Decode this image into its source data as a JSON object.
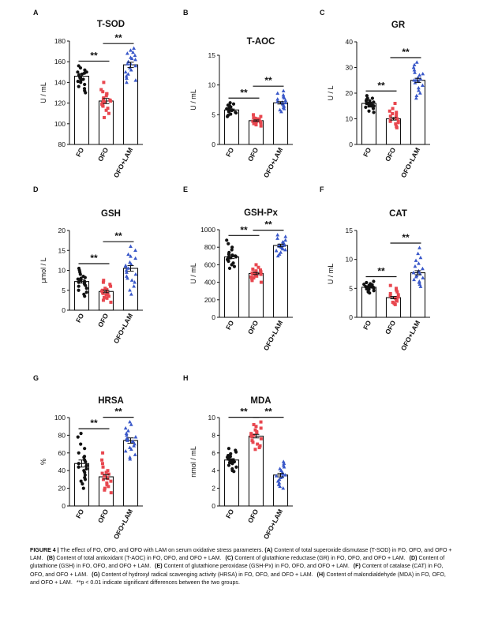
{
  "figure": {
    "caption_label": "FIGURE 4 |",
    "caption_text": "The effect of FO, OFO, and OFO with LAM on serum oxidative stress parameters.",
    "caption_items": [
      {
        "letter": "(A)",
        "text": "Content of total superoxide dismutase (T-SOD) in FO, OFO, and OFO + LAM."
      },
      {
        "letter": "(B)",
        "text": "Content of total antioxidant (T-AOC) in FO, OFO, and OFO + LAM."
      },
      {
        "letter": "(C)",
        "text": "Content of glutathione reductase (GR) in FO, OFO, and OFO + LAM."
      },
      {
        "letter": "(D)",
        "text": "Content of glutathione (GSH) in FO, OFO, and OFO + LAM."
      },
      {
        "letter": "(E)",
        "text": "Content of glutathione peroxidase (GSH-Px) in FO, OFO, and OFO + LAM."
      },
      {
        "letter": "(F)",
        "text": "Content of catalase (CAT) in FO, OFO, and OFO + LAM."
      },
      {
        "letter": "(G)",
        "text": "Content of hydroxyl radical scavenging activity (HRSA) in FO, OFO, and OFO + LAM."
      },
      {
        "letter": "(H)",
        "text": "Content of malondialdehyde (MDA) in FO, OFO, and OFO + LAM."
      }
    ],
    "caption_footnote": "**p < 0.01 indicate significant differences between the two groups.",
    "colors": {
      "FO": "#111111",
      "OFO": "#e8474f",
      "OFO+LAM": "#3a58c9"
    },
    "markers": {
      "FO": "circle",
      "OFO": "square",
      "OFO+LAM": "triangle"
    }
  },
  "chart_data": [
    {
      "panel": "A",
      "type": "bar",
      "title": "T-SOD",
      "ylabel": "U / mL",
      "ylim": [
        80,
        180
      ],
      "yticks": [
        80,
        100,
        120,
        140,
        160,
        180
      ],
      "categories": [
        "FO",
        "OFO",
        "OFO+LAM"
      ],
      "values": [
        146,
        122,
        157
      ],
      "sem": [
        2.5,
        2.5,
        2.5
      ],
      "points": [
        [
          154,
          152,
          150,
          149,
          148,
          147,
          146,
          145,
          144,
          143,
          142,
          141,
          140,
          138,
          136,
          134,
          132,
          130,
          156,
          150
        ],
        [
          140,
          133,
          131,
          129,
          127,
          125,
          124,
          123,
          122,
          121,
          120,
          119,
          118,
          117,
          115,
          113,
          110,
          106,
          129,
          122
        ],
        [
          173,
          171,
          169,
          168,
          166,
          164,
          162,
          160,
          158,
          156,
          154,
          152,
          150,
          148,
          146,
          144,
          142,
          140,
          158,
          163
        ]
      ],
      "significance": [
        {
          "from": 0,
          "to": 1,
          "label": "**"
        },
        {
          "from": 1,
          "to": 2,
          "label": "**"
        }
      ]
    },
    {
      "panel": "B",
      "type": "bar",
      "title": "T-AOC",
      "ylabel": "U / mL",
      "ylim": [
        0,
        15
      ],
      "yticks": [
        0,
        5,
        10,
        15
      ],
      "categories": [
        "FO",
        "OFO",
        "OFO+LAM"
      ],
      "values": [
        5.8,
        4.0,
        7.0
      ],
      "sem": [
        0.15,
        0.12,
        0.2
      ],
      "points": [
        [
          7.0,
          6.8,
          6.5,
          6.3,
          6.1,
          6.0,
          5.9,
          5.8,
          5.7,
          5.6,
          5.5,
          5.4,
          5.3,
          5.1,
          4.9,
          4.7,
          6.6,
          5.8
        ],
        [
          5.0,
          4.7,
          4.5,
          4.3,
          4.2,
          4.1,
          4.0,
          3.9,
          3.8,
          3.7,
          3.6,
          3.5,
          3.3,
          3.1,
          4.4,
          3.9
        ],
        [
          9.0,
          8.6,
          8.3,
          8.0,
          7.8,
          7.6,
          7.4,
          7.2,
          7.0,
          6.8,
          6.6,
          6.4,
          6.2,
          6.0,
          5.8,
          5.5,
          7.1,
          6.9
        ]
      ],
      "significance": [
        {
          "from": 0,
          "to": 1,
          "label": "**"
        },
        {
          "from": 1,
          "to": 2,
          "label": "**"
        }
      ]
    },
    {
      "panel": "C",
      "type": "bar",
      "title": "GR",
      "ylabel": "U / L",
      "ylim": [
        0,
        40
      ],
      "yticks": [
        0,
        10,
        20,
        30,
        40
      ],
      "categories": [
        "FO",
        "OFO",
        "OFO+LAM"
      ],
      "values": [
        16,
        10,
        25
      ],
      "sem": [
        0.5,
        0.5,
        0.8
      ],
      "points": [
        [
          19,
          18,
          18,
          17,
          17,
          16.5,
          16,
          16,
          15.5,
          15,
          15,
          14.5,
          14,
          13,
          12.5,
          17.5,
          16,
          15
        ],
        [
          16,
          14,
          13,
          12,
          11.5,
          11,
          10.5,
          10,
          10,
          9.5,
          9,
          9,
          8.5,
          8,
          7,
          6.5,
          12.5,
          10
        ],
        [
          32,
          31,
          30,
          29,
          28,
          27,
          26,
          25.5,
          25,
          24.5,
          24,
          23,
          22,
          21,
          20,
          19,
          18,
          27.5,
          25
        ]
      ],
      "significance": [
        {
          "from": 0,
          "to": 1,
          "label": "**"
        },
        {
          "from": 1,
          "to": 2,
          "label": "**"
        }
      ]
    },
    {
      "panel": "D",
      "type": "bar",
      "title": "GSH",
      "ylabel": "μmol / L",
      "ylim": [
        0,
        20
      ],
      "yticks": [
        0,
        5,
        10,
        15,
        20
      ],
      "categories": [
        "FO",
        "OFO",
        "OFO+LAM"
      ],
      "values": [
        7.2,
        4.7,
        10.5
      ],
      "sem": [
        0.4,
        0.3,
        0.7
      ],
      "points": [
        [
          10.5,
          10,
          9.5,
          9,
          8.5,
          8,
          7.8,
          7.5,
          7.2,
          7,
          6.8,
          6.5,
          6.2,
          6,
          5.5,
          5,
          4.5,
          4,
          3.5,
          8.2,
          7
        ],
        [
          7.5,
          7,
          6.5,
          6,
          5.5,
          5,
          4.8,
          4.5,
          4.2,
          4,
          3.8,
          3.5,
          3.2,
          3,
          2.5,
          2,
          5.2,
          4.4
        ],
        [
          16,
          15,
          14,
          13.5,
          13,
          12,
          11.5,
          11,
          10.5,
          10,
          9.5,
          9,
          8.5,
          8,
          7.5,
          7,
          6,
          5,
          4,
          11.2
        ]
      ],
      "significance": [
        {
          "from": 0,
          "to": 1,
          "label": "**"
        },
        {
          "from": 1,
          "to": 2,
          "label": "**"
        }
      ]
    },
    {
      "panel": "E",
      "type": "bar",
      "title": "GSH-Px",
      "ylabel": "U / mL",
      "ylim": [
        0,
        1000
      ],
      "yticks": [
        0,
        200,
        400,
        600,
        800,
        1000
      ],
      "categories": [
        "FO",
        "OFO",
        "OFO+LAM"
      ],
      "values": [
        690,
        500,
        820
      ],
      "sem": [
        20,
        12,
        15
      ],
      "points": [
        [
          880,
          840,
          800,
          770,
          740,
          720,
          700,
          690,
          680,
          670,
          660,
          650,
          640,
          620,
          600,
          580,
          560,
          710,
          690
        ],
        [
          600,
          570,
          550,
          540,
          530,
          520,
          510,
          500,
          490,
          480,
          470,
          460,
          450,
          440,
          420,
          400,
          505,
          495
        ],
        [
          940,
          920,
          900,
          880,
          860,
          850,
          840,
          830,
          820,
          810,
          800,
          790,
          780,
          770,
          760,
          740,
          720,
          700,
          825,
          815
        ]
      ],
      "significance": [
        {
          "from": 0,
          "to": 1,
          "label": "**"
        },
        {
          "from": 1,
          "to": 2,
          "label": "**"
        }
      ]
    },
    {
      "panel": "F",
      "type": "bar",
      "title": "CAT",
      "ylabel": "U / mL",
      "ylim": [
        0,
        15
      ],
      "yticks": [
        0,
        5,
        10,
        15
      ],
      "categories": [
        "FO",
        "OFO",
        "OFO+LAM"
      ],
      "values": [
        5.2,
        3.4,
        7.7
      ],
      "sem": [
        0.15,
        0.2,
        0.35
      ],
      "points": [
        [
          6.2,
          6,
          5.8,
          5.6,
          5.5,
          5.4,
          5.3,
          5.2,
          5.1,
          5,
          4.9,
          4.8,
          4.6,
          4.4,
          4.2,
          5.7,
          5.2
        ],
        [
          5.5,
          5,
          4.7,
          4.4,
          4.1,
          3.9,
          3.7,
          3.5,
          3.3,
          3.1,
          3,
          2.9,
          2.8,
          2.6,
          2.4,
          2.2,
          3.4
        ],
        [
          12,
          11,
          10.3,
          9.8,
          9.3,
          8.8,
          8.4,
          8,
          7.8,
          7.5,
          7.2,
          7,
          6.8,
          6.5,
          6.2,
          6,
          5.7,
          5.3,
          7.7
        ]
      ],
      "significance": [
        {
          "from": 0,
          "to": 1,
          "label": "**"
        },
        {
          "from": 1,
          "to": 2,
          "label": "**"
        }
      ]
    },
    {
      "panel": "G",
      "type": "bar",
      "title": "HRSA",
      "ylabel": "%",
      "ylim": [
        0,
        100
      ],
      "yticks": [
        0,
        20,
        40,
        60,
        80,
        100
      ],
      "categories": [
        "FO",
        "OFO",
        "OFO+LAM"
      ],
      "values": [
        48,
        33,
        74
      ],
      "sem": [
        4,
        2.5,
        3
      ],
      "points": [
        [
          82,
          78,
          70,
          65,
          60,
          56,
          52,
          50,
          48,
          46,
          44,
          42,
          40,
          38,
          35,
          32,
          30,
          28,
          25,
          20,
          55,
          45
        ],
        [
          60,
          52,
          48,
          44,
          40,
          38,
          36,
          34,
          32,
          30,
          28,
          26,
          24,
          22,
          20,
          18,
          15,
          37,
          31
        ],
        [
          95,
          92,
          88,
          85,
          82,
          80,
          78,
          76,
          74,
          72,
          70,
          68,
          66,
          64,
          62,
          58,
          55,
          53,
          76,
          73
        ]
      ],
      "significance": [
        {
          "from": 0,
          "to": 1,
          "label": "**"
        },
        {
          "from": 1,
          "to": 2,
          "label": "**"
        }
      ]
    },
    {
      "panel": "H",
      "type": "bar",
      "title": "MDA",
      "ylabel": "nmol / mL",
      "ylim": [
        0,
        10
      ],
      "yticks": [
        0,
        2,
        4,
        6,
        8,
        10
      ],
      "categories": [
        "FO",
        "OFO",
        "OFO+LAM"
      ],
      "values": [
        5.2,
        7.9,
        3.5
      ],
      "sem": [
        0.15,
        0.2,
        0.2
      ],
      "points": [
        [
          6.5,
          6.3,
          6.1,
          5.9,
          5.7,
          5.5,
          5.4,
          5.3,
          5.2,
          5.1,
          5,
          4.9,
          4.8,
          4.6,
          4.4,
          4.2,
          4,
          3.9,
          5.6,
          5.2
        ],
        [
          9.5,
          9.2,
          9,
          8.8,
          8.6,
          8.4,
          8.2,
          8,
          7.9,
          7.8,
          7.6,
          7.4,
          7.2,
          7,
          6.8,
          6.6,
          6.4,
          8.3,
          7.9
        ],
        [
          5,
          4.8,
          4.6,
          4.4,
          4.2,
          4,
          3.8,
          3.6,
          3.5,
          3.4,
          3.2,
          3,
          2.8,
          2.6,
          2.4,
          2.2,
          2,
          3.7,
          3.3
        ]
      ],
      "significance": [
        {
          "from": 0,
          "to": 1,
          "label": "**"
        },
        {
          "from": 1,
          "to": 2,
          "label": "**"
        }
      ]
    }
  ]
}
